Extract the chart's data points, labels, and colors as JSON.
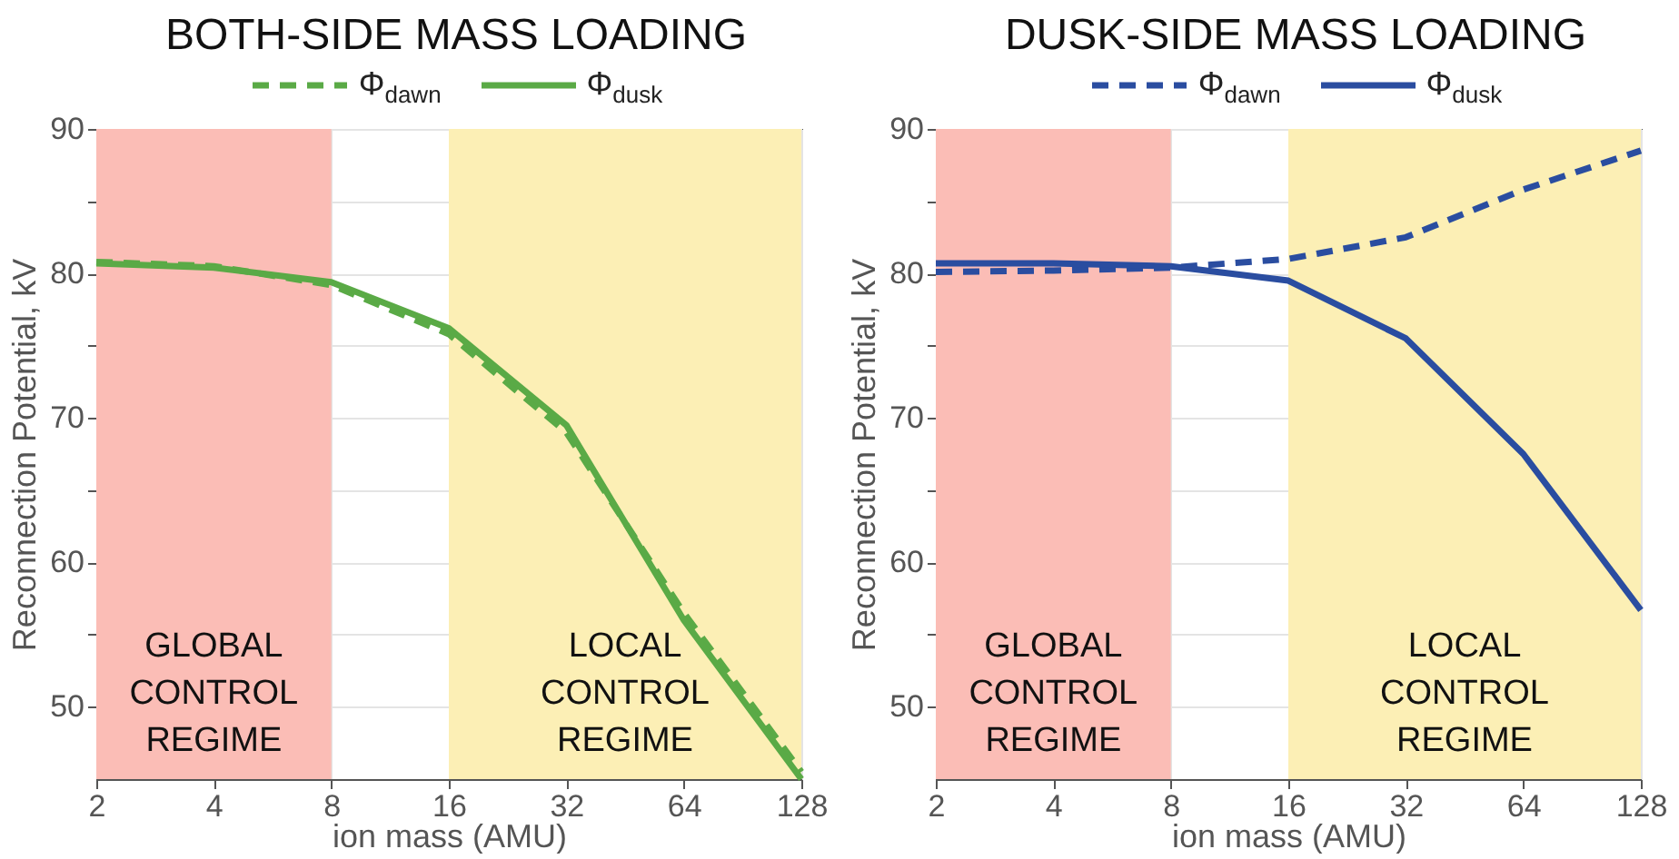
{
  "chart_data": [
    {
      "type": "line",
      "title": "BOTH-SIDE MASS LOADING",
      "xlabel": "ion mass (AMU)",
      "ylabel": "Reconnection Potential, kV",
      "log": "x",
      "xlim": [
        2,
        128
      ],
      "xticks": [
        2,
        4,
        8,
        16,
        32,
        64,
        128
      ],
      "ylim": [
        45,
        90
      ],
      "yticks": [
        50,
        {
          "value": 55,
          "label": null
        },
        60,
        {
          "value": 65,
          "label": null
        },
        70,
        {
          "value": 75,
          "label": null
        },
        80,
        {
          "value": 85,
          "label": null
        },
        90
      ],
      "grid": true,
      "legend": "top",
      "x": [
        2,
        4,
        8,
        16,
        32,
        64,
        128
      ],
      "series": [
        {
          "name": "Φ$_{dawn}$",
          "color": "#5aaa46",
          "line_style": "dashed",
          "values": [
            80.8,
            80.5,
            79.2,
            75.8,
            69.0,
            56.5,
            45.5
          ]
        },
        {
          "name": "Φ$_{dusk}$",
          "color": "#5aaa46",
          "line_style": "solid",
          "values": [
            80.7,
            80.4,
            79.4,
            76.2,
            69.5,
            56.0,
            45.0
          ]
        }
      ],
      "bands": [
        {
          "axis": "x",
          "from": 2,
          "to": 8,
          "label": "GLOBAL CONTROL REGIME",
          "color": "#fbbdb6"
        },
        {
          "axis": "x",
          "from": 16,
          "to": 128,
          "label": "LOCAL CONTROL REGIME",
          "color": "#fcefb5"
        }
      ]
    },
    {
      "type": "line",
      "title": "DUSK-SIDE MASS LOADING",
      "xlabel": "ion mass (AMU)",
      "ylabel": "Reconnection Potential, kV",
      "log": "x",
      "xlim": [
        2,
        128
      ],
      "xticks": [
        2,
        4,
        8,
        16,
        32,
        64,
        128
      ],
      "ylim": [
        45,
        90
      ],
      "yticks": [
        50,
        {
          "value": 55,
          "label": null
        },
        60,
        {
          "value": 65,
          "label": null
        },
        70,
        {
          "value": 75,
          "label": null
        },
        80,
        {
          "value": 85,
          "label": null
        },
        90
      ],
      "grid": true,
      "legend": "top",
      "x": [
        2,
        4,
        8,
        16,
        32,
        64,
        128
      ],
      "series": [
        {
          "name": "Φ$_{dawn}$",
          "color": "#2a4da0",
          "line_style": "dashed",
          "values": [
            80.1,
            80.2,
            80.4,
            81.0,
            82.5,
            85.8,
            88.5
          ]
        },
        {
          "name": "Φ$_{dusk}$",
          "color": "#2a4da0",
          "line_style": "solid",
          "values": [
            80.7,
            80.7,
            80.5,
            79.5,
            75.5,
            67.5,
            56.7
          ]
        }
      ],
      "bands": [
        {
          "axis": "x",
          "from": 2,
          "to": 8,
          "label": "GLOBAL CONTROL REGIME",
          "color": "#fbbdb6"
        },
        {
          "axis": "x",
          "from": 16,
          "to": 128,
          "label": "LOCAL CONTROL REGIME",
          "color": "#fcefb5"
        }
      ]
    }
  ]
}
